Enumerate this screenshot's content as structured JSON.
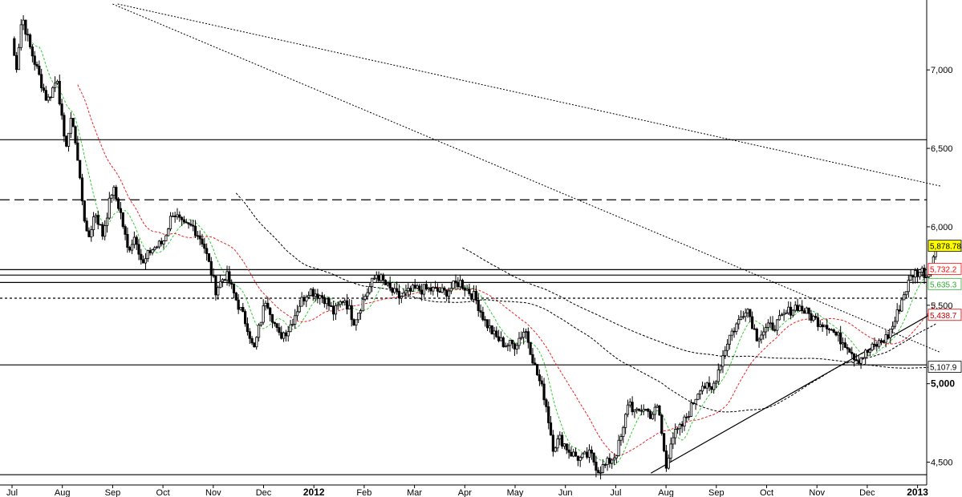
{
  "chart_data": {
    "type": "candlestick",
    "title": "",
    "xlabel": "",
    "ylabel": "",
    "grid": false,
    "ylim": [
      4380,
      7420
    ],
    "x_tick_labels": [
      {
        "label": "Jul",
        "month_index": 0,
        "bold": false
      },
      {
        "label": "Aug",
        "month_index": 1,
        "bold": false
      },
      {
        "label": "Sep",
        "month_index": 2,
        "bold": false
      },
      {
        "label": "Oct",
        "month_index": 3,
        "bold": false
      },
      {
        "label": "Nov",
        "month_index": 4,
        "bold": false
      },
      {
        "label": "Dec",
        "month_index": 5,
        "bold": false
      },
      {
        "label": "2012",
        "month_index": 6,
        "bold": true
      },
      {
        "label": "Feb",
        "month_index": 7,
        "bold": false
      },
      {
        "label": "Mar",
        "month_index": 8,
        "bold": false
      },
      {
        "label": "Apr",
        "month_index": 9,
        "bold": false
      },
      {
        "label": "May",
        "month_index": 10,
        "bold": false
      },
      {
        "label": "Jun",
        "month_index": 11,
        "bold": false
      },
      {
        "label": "Jul",
        "month_index": 12,
        "bold": false
      },
      {
        "label": "Aug",
        "month_index": 13,
        "bold": false
      },
      {
        "label": "Sep",
        "month_index": 14,
        "bold": false
      },
      {
        "label": "Oct",
        "month_index": 15,
        "bold": false
      },
      {
        "label": "Nov",
        "month_index": 16,
        "bold": false
      },
      {
        "label": "Dec",
        "month_index": 17,
        "bold": false
      },
      {
        "label": "2013",
        "month_index": 18,
        "bold": true
      }
    ],
    "y_tick_labels": [
      {
        "label": "4,500",
        "value": 4500,
        "bold": false
      },
      {
        "label": "5,000",
        "value": 5000,
        "bold": true
      },
      {
        "label": "5,500",
        "value": 5500,
        "bold": false
      },
      {
        "label": "6,000",
        "value": 6000,
        "bold": false
      },
      {
        "label": "6,500",
        "value": 6500,
        "bold": false
      },
      {
        "label": "7,000",
        "value": 7000,
        "bold": false
      }
    ],
    "price_tags": [
      {
        "label": "5,878.78",
        "value": 5878.78,
        "bg": "#ffff00",
        "color": "#000000",
        "border": "#000000"
      },
      {
        "label": "5,732.2",
        "value": 5732.2,
        "bg": "#ffffff",
        "color": "#ff0000",
        "border": "#ff0000"
      },
      {
        "label": "5,635.3",
        "value": 5635.3,
        "bg": "#ffffff",
        "color": "#33aa33",
        "border": "#33aa33"
      },
      {
        "label": "5,438.7",
        "value": 5438.7,
        "bg": "#ffffff",
        "color": "#cc0000",
        "border": "#cc0000"
      },
      {
        "label": "5,107.9",
        "value": 5107.9,
        "bg": "#ffffff",
        "color": "#000000",
        "border": "#000000"
      }
    ],
    "horizontal_levels": [
      {
        "value": 6555,
        "style": "solid"
      },
      {
        "value": 6172,
        "style": "dashed"
      },
      {
        "value": 5727,
        "style": "solid"
      },
      {
        "value": 5692,
        "style": "solid"
      },
      {
        "value": 5645,
        "style": "solid"
      },
      {
        "value": 5545,
        "style": "dotted"
      },
      {
        "value": 5120,
        "style": "solid"
      },
      {
        "value": 4420,
        "style": "solid"
      }
    ],
    "trendline": {
      "from": [
        12.7,
        4430
      ],
      "to": [
        18.3,
        5450
      ]
    },
    "anchors": [
      [
        0,
        7200
      ],
      [
        0.08,
        7000
      ],
      [
        0.2,
        7350
      ],
      [
        0.35,
        7150
      ],
      [
        0.5,
        7000
      ],
      [
        0.7,
        6800
      ],
      [
        0.9,
        6950
      ],
      [
        1.05,
        6500
      ],
      [
        1.2,
        6700
      ],
      [
        1.35,
        6300
      ],
      [
        1.5,
        5900
      ],
      [
        1.65,
        6100
      ],
      [
        1.8,
        5950
      ],
      [
        2.0,
        6250
      ],
      [
        2.15,
        6100
      ],
      [
        2.3,
        5850
      ],
      [
        2.45,
        5950
      ],
      [
        2.6,
        5750
      ],
      [
        2.75,
        5850
      ],
      [
        3.0,
        5900
      ],
      [
        3.2,
        6100
      ],
      [
        3.4,
        6000
      ],
      [
        3.6,
        6000
      ],
      [
        3.8,
        5900
      ],
      [
        4.05,
        5600
      ],
      [
        4.25,
        5700
      ],
      [
        4.5,
        5500
      ],
      [
        4.7,
        5350
      ],
      [
        4.8,
        5200
      ],
      [
        5.05,
        5550
      ],
      [
        5.15,
        5450
      ],
      [
        5.3,
        5300
      ],
      [
        5.5,
        5350
      ],
      [
        5.7,
        5500
      ],
      [
        5.9,
        5600
      ],
      [
        6.2,
        5550
      ],
      [
        6.4,
        5450
      ],
      [
        6.6,
        5550
      ],
      [
        6.8,
        5400
      ],
      [
        7.0,
        5550
      ],
      [
        7.25,
        5700
      ],
      [
        7.5,
        5600
      ],
      [
        7.7,
        5550
      ],
      [
        8.0,
        5600
      ],
      [
        8.3,
        5600
      ],
      [
        8.6,
        5580
      ],
      [
        8.9,
        5650
      ],
      [
        9.2,
        5550
      ],
      [
        9.4,
        5400
      ],
      [
        9.6,
        5300
      ],
      [
        9.8,
        5250
      ],
      [
        10.0,
        5250
      ],
      [
        10.2,
        5350
      ],
      [
        10.4,
        5100
      ],
      [
        10.6,
        4900
      ],
      [
        10.75,
        4600
      ],
      [
        10.9,
        4650
      ],
      [
        11.1,
        4560
      ],
      [
        11.3,
        4520
      ],
      [
        11.5,
        4550
      ],
      [
        11.65,
        4450
      ],
      [
        11.8,
        4480
      ],
      [
        12.0,
        4550
      ],
      [
        12.15,
        4700
      ],
      [
        12.25,
        4900
      ],
      [
        12.4,
        4800
      ],
      [
        12.55,
        4850
      ],
      [
        12.7,
        4800
      ],
      [
        12.85,
        4850
      ],
      [
        13.0,
        4460
      ],
      [
        13.1,
        4650
      ],
      [
        13.3,
        4720
      ],
      [
        13.5,
        4850
      ],
      [
        13.7,
        5000
      ],
      [
        13.9,
        4950
      ],
      [
        14.05,
        5100
      ],
      [
        14.15,
        5200
      ],
      [
        14.25,
        5300
      ],
      [
        14.45,
        5400
      ],
      [
        14.6,
        5500
      ],
      [
        14.8,
        5300
      ],
      [
        15.0,
        5350
      ],
      [
        15.2,
        5380
      ],
      [
        15.4,
        5450
      ],
      [
        15.6,
        5500
      ],
      [
        15.8,
        5450
      ],
      [
        16.0,
        5400
      ],
      [
        16.2,
        5380
      ],
      [
        16.4,
        5300
      ],
      [
        16.6,
        5250
      ],
      [
        16.8,
        5150
      ],
      [
        17.0,
        5200
      ],
      [
        17.2,
        5250
      ],
      [
        17.4,
        5300
      ],
      [
        17.55,
        5400
      ],
      [
        17.7,
        5550
      ],
      [
        17.9,
        5700
      ],
      [
        18.1,
        5720
      ],
      [
        18.2,
        5680
      ],
      [
        18.3,
        5800
      ],
      [
        18.4,
        5880
      ]
    ],
    "moving_averages": [
      {
        "color": "#33cc33",
        "period": 10
      },
      {
        "color": "#ee2222",
        "period": 30
      },
      {
        "color": "#000000",
        "period": 100
      },
      {
        "color": "#000000",
        "period": 200
      }
    ],
    "long_term_trendlines": [
      {
        "from": [
          2.1,
          7420
        ],
        "to": [
          18.45,
          6260
        ]
      },
      {
        "from": [
          2.0,
          7420
        ],
        "to": [
          18.45,
          5200
        ]
      }
    ]
  }
}
